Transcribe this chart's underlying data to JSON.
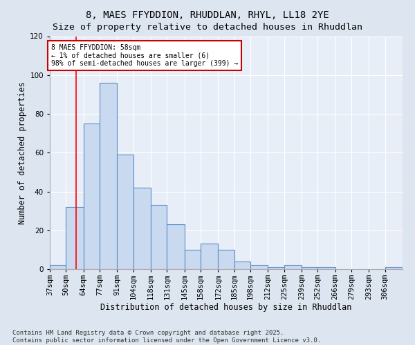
{
  "title": "8, MAES FFYDDION, RHUDDLAN, RHYL, LL18 2YE",
  "subtitle": "Size of property relative to detached houses in Rhuddlan",
  "xlabel": "Distribution of detached houses by size in Rhuddlan",
  "ylabel": "Number of detached properties",
  "categories": [
    "37sqm",
    "50sqm",
    "64sqm",
    "77sqm",
    "91sqm",
    "104sqm",
    "118sqm",
    "131sqm",
    "145sqm",
    "158sqm",
    "172sqm",
    "185sqm",
    "198sqm",
    "212sqm",
    "225sqm",
    "239sqm",
    "252sqm",
    "266sqm",
    "279sqm",
    "293sqm",
    "306sqm"
  ],
  "bar_heights": [
    2,
    32,
    75,
    96,
    59,
    42,
    33,
    23,
    10,
    13,
    10,
    4,
    2,
    1,
    2,
    1,
    1,
    0,
    0,
    0,
    1
  ],
  "bins": [
    37,
    50,
    64,
    77,
    91,
    104,
    118,
    131,
    145,
    158,
    172,
    185,
    198,
    212,
    225,
    239,
    252,
    266,
    279,
    293,
    306,
    320
  ],
  "bar_color": "#c9d9ef",
  "bar_edge_color": "#5b8ec4",
  "red_line_x": 58,
  "ylim_max": 120,
  "yticks": [
    0,
    20,
    40,
    60,
    80,
    100,
    120
  ],
  "annotation_text": "8 MAES FFYDDION: 58sqm\n← 1% of detached houses are smaller (6)\n98% of semi-detached houses are larger (399) →",
  "annotation_box_facecolor": "#ffffff",
  "annotation_box_edgecolor": "#cc0000",
  "footer": "Contains HM Land Registry data © Crown copyright and database right 2025.\nContains public sector information licensed under the Open Government Licence v3.0.",
  "background_color": "#dde5f0",
  "plot_bg_color": "#e8eef7",
  "grid_color": "#ffffff",
  "title_fontsize": 10,
  "axis_label_fontsize": 8.5,
  "tick_fontsize": 7.5,
  "footer_fontsize": 6.5
}
